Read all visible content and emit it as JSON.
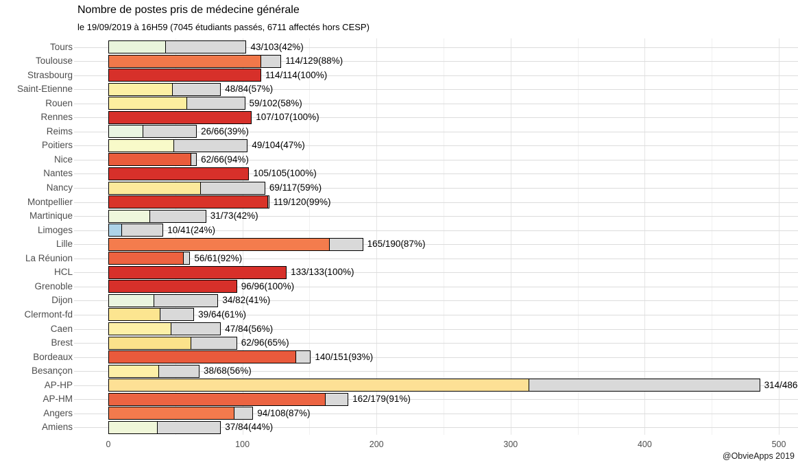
{
  "header": {
    "title": "Nombre de postes pris de médecine générale",
    "subtitle": "le 19/09/2019 à 16H59 (7045 étudiants passés, 6711 affectés hors CESP)"
  },
  "footer": {
    "credit": "@ObvieApps 2019"
  },
  "chart_data": {
    "type": "bar",
    "orientation": "horizontal",
    "title": "Nombre de postes pris de médecine générale",
    "subtitle": "le 19/09/2019 à 16H59 (7045 étudiants passés, 6711 affectés hors CESP)",
    "xlabel": "",
    "ylabel": "",
    "xlim": [
      0,
      514
    ],
    "x_ticks": [
      0,
      100,
      200,
      300,
      400,
      500
    ],
    "x_minor_gridlines": [
      50,
      150,
      250,
      350,
      450
    ],
    "grid": "on",
    "legend": "none",
    "remainder_color": "#d9d9d9",
    "bar_border_color": "#000000",
    "rows": [
      {
        "category": "Tours",
        "taken": 43,
        "total": 103,
        "percent": 42,
        "label": "43/103(42%)",
        "color": "#e9f5dc"
      },
      {
        "category": "Toulouse",
        "taken": 114,
        "total": 129,
        "percent": 88,
        "label": "114/129(88%)",
        "color": "#f1784a"
      },
      {
        "category": "Strasbourg",
        "taken": 114,
        "total": 114,
        "percent": 100,
        "label": "114/114(100%)",
        "color": "#d7302a"
      },
      {
        "category": "Saint-Etienne",
        "taken": 48,
        "total": 84,
        "percent": 57,
        "label": "48/84(57%)",
        "color": "#fdf0a4"
      },
      {
        "category": "Rouen",
        "taken": 59,
        "total": 102,
        "percent": 58,
        "label": "59/102(58%)",
        "color": "#fdee9f"
      },
      {
        "category": "Rennes",
        "taken": 107,
        "total": 107,
        "percent": 100,
        "label": "107/107(100%)",
        "color": "#d7302a"
      },
      {
        "category": "Reims",
        "taken": 26,
        "total": 66,
        "percent": 39,
        "label": "26/66(39%)",
        "color": "#e9f5e2"
      },
      {
        "category": "Poitiers",
        "taken": 49,
        "total": 104,
        "percent": 47,
        "label": "49/104(47%)",
        "color": "#f8fac9"
      },
      {
        "category": "Nice",
        "taken": 62,
        "total": 66,
        "percent": 94,
        "label": "62/66(94%)",
        "color": "#ea5c3b"
      },
      {
        "category": "Nantes",
        "taken": 105,
        "total": 105,
        "percent": 100,
        "label": "105/105(100%)",
        "color": "#d7302a"
      },
      {
        "category": "Nancy",
        "taken": 69,
        "total": 117,
        "percent": 59,
        "label": "69/117(59%)",
        "color": "#fdea9b"
      },
      {
        "category": "Montpellier",
        "taken": 119,
        "total": 120,
        "percent": 99,
        "label": "119/120(99%)",
        "color": "#d93329"
      },
      {
        "category": "Martinique",
        "taken": 31,
        "total": 73,
        "percent": 42,
        "label": "31/73(42%)",
        "color": "#eff7dc"
      },
      {
        "category": "Limoges",
        "taken": 10,
        "total": 41,
        "percent": 24,
        "label": "10/41(24%)",
        "color": "#aed3e8"
      },
      {
        "category": "Lille",
        "taken": 165,
        "total": 190,
        "percent": 87,
        "label": "165/190(87%)",
        "color": "#f47c4d"
      },
      {
        "category": "La Réunion",
        "taken": 56,
        "total": 61,
        "percent": 92,
        "label": "56/61(92%)",
        "color": "#ed6240"
      },
      {
        "category": "HCL",
        "taken": 133,
        "total": 133,
        "percent": 100,
        "label": "133/133(100%)",
        "color": "#d7302a"
      },
      {
        "category": "Grenoble",
        "taken": 96,
        "total": 96,
        "percent": 100,
        "label": "96/96(100%)",
        "color": "#d7302a"
      },
      {
        "category": "Dijon",
        "taken": 34,
        "total": 82,
        "percent": 41,
        "label": "34/82(41%)",
        "color": "#eaf5df"
      },
      {
        "category": "Clermont-fd",
        "taken": 39,
        "total": 64,
        "percent": 61,
        "label": "39/64(61%)",
        "color": "#fce590"
      },
      {
        "category": "Caen",
        "taken": 47,
        "total": 84,
        "percent": 56,
        "label": "47/84(56%)",
        "color": "#fdf0a7"
      },
      {
        "category": "Brest",
        "taken": 62,
        "total": 96,
        "percent": 65,
        "label": "62/96(65%)",
        "color": "#fbe28b"
      },
      {
        "category": "Bordeaux",
        "taken": 140,
        "total": 151,
        "percent": 93,
        "label": "140/151(93%)",
        "color": "#e95a3c"
      },
      {
        "category": "Besançon",
        "taken": 38,
        "total": 68,
        "percent": 56,
        "label": "38/68(56%)",
        "color": "#fdf0a7"
      },
      {
        "category": "AP-HP",
        "taken": 314,
        "total": 486,
        "percent": null,
        "label": "314/486",
        "color": "#fde095"
      },
      {
        "category": "AP-HM",
        "taken": 162,
        "total": 179,
        "percent": 91,
        "label": "162/179(91%)",
        "color": "#ec6442"
      },
      {
        "category": "Angers",
        "taken": 94,
        "total": 108,
        "percent": 87,
        "label": "94/108(87%)",
        "color": "#f37a4d"
      },
      {
        "category": "Amiens",
        "taken": 37,
        "total": 84,
        "percent": 44,
        "label": "37/84(44%)",
        "color": "#f0f7d9"
      }
    ]
  }
}
